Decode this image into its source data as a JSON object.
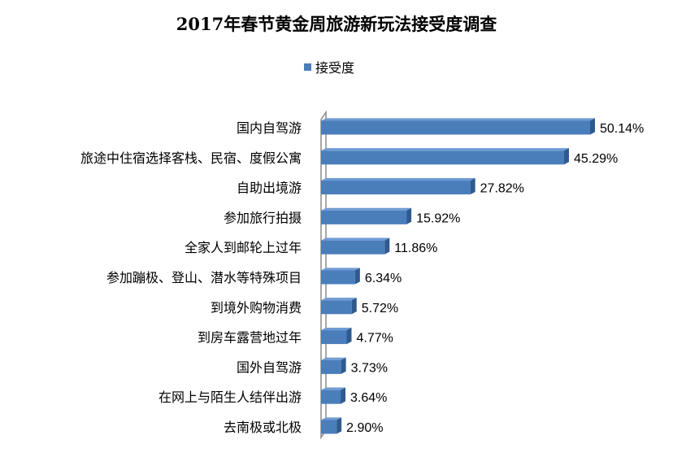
{
  "chart_data": {
    "type": "bar",
    "orientation": "horizontal",
    "title": "2017年春节黄金周旅游新玩法接受度调查",
    "legend": "top",
    "series": [
      {
        "name": "接受度",
        "color": "#4a7ebb"
      }
    ],
    "categories": [
      "国内自驾游",
      "旅途中住宿选择客栈、民宿、度假公寓",
      "自助出境游",
      "参加旅行拍摄",
      "全家人到邮轮上过年",
      "参加蹦极、登山、潜水等特殊项目",
      "到境外购物消费",
      "到房车露营地过年",
      "国外自驾游",
      "在网上与陌生人结伴出游",
      "去南极或北极"
    ],
    "values": [
      50.14,
      45.29,
      27.82,
      15.92,
      11.86,
      6.34,
      5.72,
      4.77,
      3.73,
      3.64,
      2.9
    ],
    "data_labels": [
      "50.14%",
      "45.29%",
      "27.82%",
      "15.92%",
      "11.86%",
      "6.34%",
      "5.72%",
      "4.77%",
      "3.73%",
      "3.64%",
      "2.90%"
    ],
    "xlim": [
      0,
      60
    ],
    "grid": false,
    "style": "3d"
  }
}
